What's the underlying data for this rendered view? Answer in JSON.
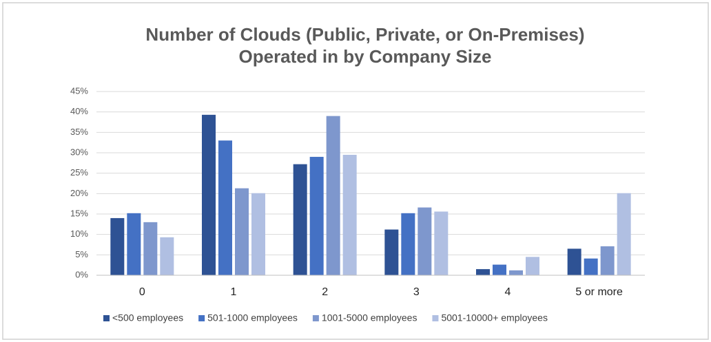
{
  "chart_data": {
    "type": "bar",
    "title": [
      "Number of Clouds (Public, Private, or On-Premises)",
      "Operated in by Company Size"
    ],
    "categories": [
      "0",
      "1",
      "2",
      "3",
      "4",
      "5 or more"
    ],
    "series": [
      {
        "name": "<500 employees",
        "color": "#2e5294",
        "values": [
          14,
          39.3,
          27.2,
          11.2,
          1.5,
          6.5
        ]
      },
      {
        "name": "501-1000 employees",
        "color": "#4471c4",
        "values": [
          15.2,
          33,
          29,
          15.2,
          2.6,
          4.1
        ]
      },
      {
        "name": "1001-5000 employees",
        "color": "#7e97cd",
        "values": [
          13,
          21.3,
          39,
          16.6,
          1.2,
          7.1
        ]
      },
      {
        "name": "5001-10000+ employees",
        "color": "#b0bfe2",
        "values": [
          9.3,
          20.1,
          29.5,
          15.6,
          4.5,
          20.1
        ]
      }
    ],
    "ylim": [
      0,
      45
    ],
    "yticks": [
      {
        "value": 0,
        "label": "0%"
      },
      {
        "value": 5,
        "label": "5%"
      },
      {
        "value": 10,
        "label": "10%"
      },
      {
        "value": 15,
        "label": "15%"
      },
      {
        "value": 20,
        "label": "20%"
      },
      {
        "value": 25,
        "label": "25%"
      },
      {
        "value": 30,
        "label": "30%"
      },
      {
        "value": 35,
        "label": "35%"
      },
      {
        "value": 40,
        "label": "40%"
      },
      {
        "value": 45,
        "label": "45%"
      }
    ],
    "grid": true,
    "legend": "bottom"
  }
}
